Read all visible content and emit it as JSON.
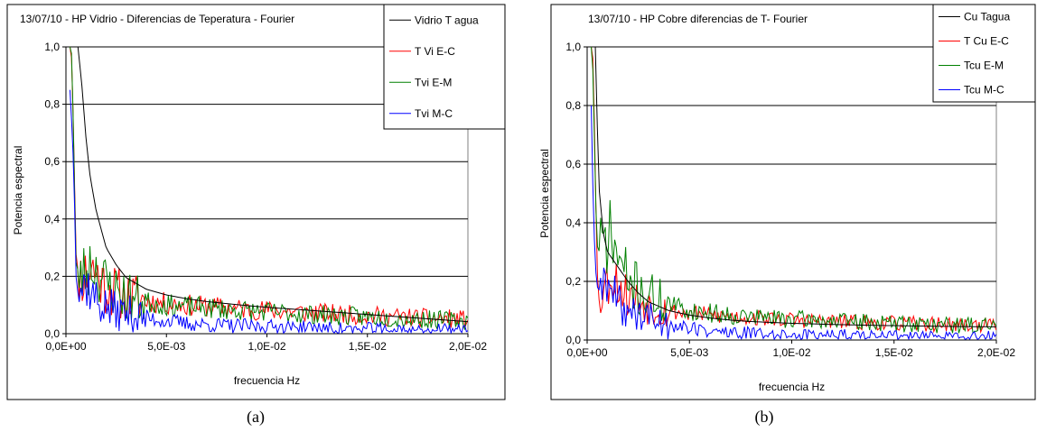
{
  "chart_data": [
    {
      "panel_label": "(a)",
      "type": "line",
      "title": "13/07/10 - HP Vidrio - Diferencias de Teperatura - Fourier",
      "xlabel": "frecuencia Hz",
      "ylabel": "Potencia espectral",
      "xlim": [
        0,
        0.02
      ],
      "ylim": [
        0,
        1.0
      ],
      "x_ticks": [
        0,
        0.005,
        0.01,
        0.015,
        0.02
      ],
      "x_tick_labels": [
        "0,0E+00",
        "5,0E-03",
        "1,0E-02",
        "1,5E-02",
        "2,0E-02"
      ],
      "y_ticks": [
        0,
        0.2,
        0.4,
        0.6,
        0.8,
        1.0
      ],
      "y_tick_labels": [
        "0,0",
        "0,2",
        "0,4",
        "0,6",
        "0,8",
        "1,0"
      ],
      "grid": "horizontal",
      "legend_position": "top-right",
      "series": [
        {
          "name": "Vidrio T agua",
          "color": "#000000",
          "kind": "smooth",
          "x": [
            0.0003,
            0.0004,
            0.0005,
            0.0006,
            0.0008,
            0.001,
            0.0012,
            0.0015,
            0.002,
            0.0025,
            0.003,
            0.004,
            0.005,
            0.006,
            0.007,
            0.008,
            0.009,
            0.01,
            0.011,
            0.012,
            0.013,
            0.014,
            0.015,
            0.016,
            0.017,
            0.018,
            0.019,
            0.02
          ],
          "y": [
            1.0,
            1.0,
            1.0,
            1.0,
            0.86,
            0.68,
            0.55,
            0.43,
            0.3,
            0.24,
            0.195,
            0.155,
            0.135,
            0.122,
            0.112,
            0.105,
            0.098,
            0.092,
            0.087,
            0.082,
            0.077,
            0.072,
            0.067,
            0.062,
            0.057,
            0.052,
            0.047,
            0.042
          ]
        },
        {
          "name": "T Vi E-C",
          "color": "#ff0000",
          "kind": "noisy",
          "x": [
            0.0002,
            0.0003,
            0.0004,
            0.0005,
            0.0006,
            0.0008,
            0.001,
            0.0013,
            0.0016,
            0.002,
            0.003,
            0.004,
            0.005,
            0.007,
            0.009,
            0.011,
            0.013,
            0.015,
            0.017,
            0.02
          ],
          "y": [
            1.0,
            0.95,
            0.62,
            0.28,
            0.22,
            0.2,
            0.21,
            0.23,
            0.2,
            0.16,
            0.13,
            0.115,
            0.105,
            0.095,
            0.085,
            0.078,
            0.07,
            0.063,
            0.057,
            0.05
          ],
          "noise": 0.045,
          "seed": 11
        },
        {
          "name": "Tvi E-M",
          "color": "#008000",
          "kind": "noisy",
          "x": [
            0.0002,
            0.0003,
            0.0004,
            0.0005,
            0.0006,
            0.0008,
            0.001,
            0.0013,
            0.0016,
            0.002,
            0.003,
            0.004,
            0.005,
            0.007,
            0.009,
            0.011,
            0.013,
            0.015,
            0.017,
            0.02
          ],
          "y": [
            1.0,
            0.97,
            0.6,
            0.25,
            0.22,
            0.2,
            0.22,
            0.25,
            0.22,
            0.17,
            0.13,
            0.11,
            0.1,
            0.09,
            0.08,
            0.072,
            0.065,
            0.058,
            0.052,
            0.045
          ],
          "noise": 0.045,
          "seed": 23
        },
        {
          "name": "Tvi M-C",
          "color": "#0000ff",
          "kind": "noisy",
          "x": [
            0.0002,
            0.0003,
            0.0004,
            0.0005,
            0.0006,
            0.0008,
            0.001,
            0.0013,
            0.0016,
            0.002,
            0.003,
            0.004,
            0.005,
            0.006,
            0.008,
            0.01,
            0.012,
            0.014,
            0.016,
            0.018,
            0.02
          ],
          "y": [
            0.85,
            0.72,
            0.55,
            0.2,
            0.14,
            0.16,
            0.18,
            0.14,
            0.11,
            0.09,
            0.07,
            0.055,
            0.045,
            0.035,
            0.028,
            0.024,
            0.02,
            0.016,
            0.013,
            0.011,
            0.01
          ],
          "noise": 0.04,
          "seed": 37
        }
      ]
    },
    {
      "panel_label": "(b)",
      "type": "line",
      "title": "13/07/10 - HP Cobre diferencias de T- Fourier",
      "xlabel": "frecuencia Hz",
      "ylabel": "Potencia espectral",
      "xlim": [
        0,
        0.02
      ],
      "ylim": [
        0,
        1.0
      ],
      "x_ticks": [
        0,
        0.005,
        0.01,
        0.015,
        0.02
      ],
      "x_tick_labels": [
        "0,0E+00",
        "5,0E-03",
        "1,0E-02",
        "1,5E-02",
        "2,0E-02"
      ],
      "y_ticks": [
        0,
        0.2,
        0.4,
        0.6,
        0.8,
        1.0
      ],
      "y_tick_labels": [
        "0,0",
        "0,2",
        "0,4",
        "0,6",
        "0,8",
        "1,0"
      ],
      "grid": "horizontal",
      "legend_position": "top-right",
      "series": [
        {
          "name": "Cu Tagua",
          "color": "#000000",
          "kind": "smooth",
          "x": [
            0.0003,
            0.0004,
            0.0005,
            0.0006,
            0.0008,
            0.001,
            0.0013,
            0.0016,
            0.002,
            0.0025,
            0.003,
            0.004,
            0.005,
            0.006,
            0.007,
            0.008,
            0.009,
            0.01,
            0.012,
            0.014,
            0.016,
            0.018,
            0.02
          ],
          "y": [
            1.0,
            1.0,
            0.72,
            0.5,
            0.36,
            0.3,
            0.27,
            0.24,
            0.2,
            0.16,
            0.13,
            0.1,
            0.085,
            0.075,
            0.068,
            0.063,
            0.06,
            0.057,
            0.053,
            0.05,
            0.048,
            0.046,
            0.045
          ]
        },
        {
          "name": "T Cu E-C",
          "color": "#ff0000",
          "kind": "noisy",
          "x": [
            0.0002,
            0.0003,
            0.0004,
            0.0005,
            0.0006,
            0.0008,
            0.001,
            0.0013,
            0.0016,
            0.002,
            0.003,
            0.004,
            0.005,
            0.007,
            0.009,
            0.011,
            0.013,
            0.015,
            0.017,
            0.02
          ],
          "y": [
            1.0,
            0.95,
            0.55,
            0.22,
            0.12,
            0.18,
            0.2,
            0.22,
            0.18,
            0.15,
            0.12,
            0.1,
            0.09,
            0.08,
            0.072,
            0.066,
            0.061,
            0.057,
            0.054,
            0.05
          ],
          "noise": 0.035,
          "seed": 53
        },
        {
          "name": "Tcu E-M",
          "color": "#008000",
          "kind": "noisy",
          "x": [
            0.0002,
            0.0003,
            0.0004,
            0.0005,
            0.0006,
            0.0008,
            0.001,
            0.0012,
            0.0015,
            0.002,
            0.003,
            0.004,
            0.005,
            0.007,
            0.009,
            0.011,
            0.013,
            0.015,
            0.017,
            0.02
          ],
          "y": [
            1.0,
            0.9,
            0.5,
            0.32,
            0.3,
            0.33,
            0.36,
            0.35,
            0.28,
            0.2,
            0.15,
            0.12,
            0.1,
            0.085,
            0.075,
            0.068,
            0.062,
            0.057,
            0.053,
            0.048
          ],
          "noise": 0.04,
          "seed": 71
        },
        {
          "name": "Tcu M-C",
          "color": "#0000ff",
          "kind": "noisy",
          "x": [
            0.0002,
            0.0003,
            0.0004,
            0.0005,
            0.0006,
            0.0008,
            0.001,
            0.0013,
            0.0016,
            0.002,
            0.003,
            0.004,
            0.005,
            0.006,
            0.008,
            0.01,
            0.012,
            0.014,
            0.016,
            0.018,
            0.02
          ],
          "y": [
            0.8,
            0.45,
            0.25,
            0.18,
            0.17,
            0.2,
            0.18,
            0.15,
            0.12,
            0.1,
            0.075,
            0.055,
            0.04,
            0.03,
            0.022,
            0.018,
            0.016,
            0.014,
            0.012,
            0.01,
            0.009
          ],
          "noise": 0.035,
          "seed": 89
        }
      ]
    }
  ]
}
